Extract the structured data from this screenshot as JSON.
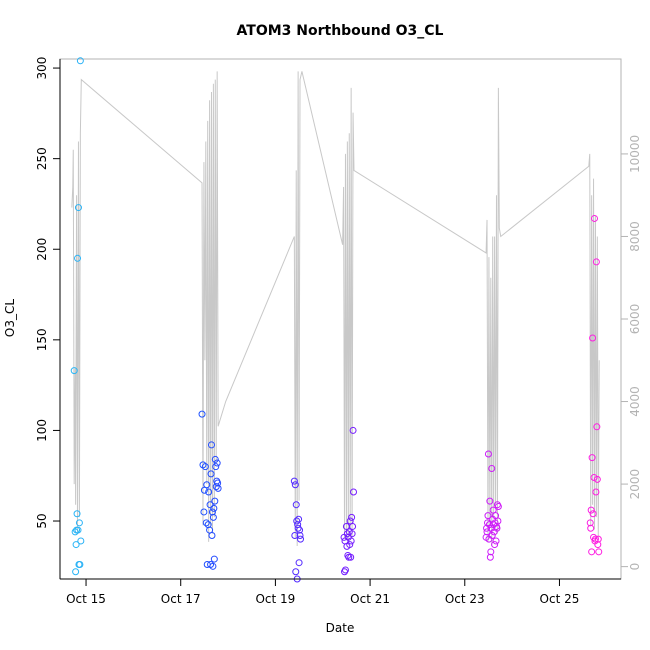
{
  "chart_data": {
    "type": "scatter",
    "title": "ATOM3 Northbound O3_CL",
    "xlabel": "Date",
    "ylabel": "O3_CL",
    "xlim": [
      14.45,
      26.3
    ],
    "ylim": [
      18,
      305
    ],
    "y2lim": [
      -300,
      12300
    ],
    "x_ticks": [
      {
        "value": 15,
        "label": "Oct 15"
      },
      {
        "value": 17,
        "label": "Oct 17"
      },
      {
        "value": 19,
        "label": "Oct 19"
      },
      {
        "value": 21,
        "label": "Oct 21"
      },
      {
        "value": 23,
        "label": "Oct 23"
      },
      {
        "value": 25,
        "label": "Oct 25"
      }
    ],
    "y_ticks": [
      50,
      100,
      150,
      200,
      250,
      300
    ],
    "y2_ticks": [
      0,
      2000,
      4000,
      6000,
      8000,
      10000
    ],
    "grid": false,
    "legend": "none",
    "colors": {
      "altitude_line": "#c8c8c8",
      "right_axis": "#b3b3b3",
      "points_gradient": [
        "#29b6f6",
        "#1e4fff",
        "#6a1bff",
        "#c21bff",
        "#ff1ee0"
      ]
    },
    "series": [
      {
        "role": "O3_CL points",
        "axis": "left",
        "style": "open circles",
        "points": [
          [
            14.75,
            133
          ],
          [
            14.77,
            44
          ],
          [
            14.78,
            22
          ],
          [
            14.79,
            37
          ],
          [
            14.8,
            45
          ],
          [
            14.81,
            54
          ],
          [
            14.82,
            195
          ],
          [
            14.83,
            45
          ],
          [
            14.84,
            223
          ],
          [
            14.85,
            26
          ],
          [
            14.86,
            49
          ],
          [
            14.87,
            26
          ],
          [
            14.88,
            304
          ],
          [
            14.89,
            39
          ],
          [
            17.45,
            109
          ],
          [
            17.47,
            81
          ],
          [
            17.49,
            55
          ],
          [
            17.5,
            67
          ],
          [
            17.52,
            80
          ],
          [
            17.54,
            49
          ],
          [
            17.55,
            70
          ],
          [
            17.56,
            26
          ],
          [
            17.58,
            48
          ],
          [
            17.59,
            66
          ],
          [
            17.61,
            45
          ],
          [
            17.62,
            59
          ],
          [
            17.63,
            26
          ],
          [
            17.64,
            76
          ],
          [
            17.65,
            92
          ],
          [
            17.66,
            42
          ],
          [
            17.67,
            55
          ],
          [
            17.68,
            25
          ],
          [
            17.69,
            52
          ],
          [
            17.7,
            57
          ],
          [
            17.71,
            29
          ],
          [
            17.72,
            61
          ],
          [
            17.73,
            84
          ],
          [
            17.74,
            80
          ],
          [
            17.75,
            69
          ],
          [
            17.76,
            72
          ],
          [
            17.77,
            82
          ],
          [
            17.78,
            71
          ],
          [
            17.79,
            68
          ],
          [
            19.4,
            72
          ],
          [
            19.41,
            42
          ],
          [
            19.42,
            70
          ],
          [
            19.43,
            22
          ],
          [
            19.44,
            59
          ],
          [
            19.45,
            50
          ],
          [
            19.46,
            18
          ],
          [
            19.47,
            48
          ],
          [
            19.48,
            46
          ],
          [
            19.49,
            51
          ],
          [
            19.5,
            27
          ],
          [
            19.51,
            45
          ],
          [
            19.52,
            42
          ],
          [
            19.53,
            40
          ],
          [
            20.45,
            41
          ],
          [
            20.46,
            22
          ],
          [
            20.47,
            39
          ],
          [
            20.48,
            23
          ],
          [
            20.5,
            47
          ],
          [
            20.51,
            36
          ],
          [
            20.52,
            43
          ],
          [
            20.53,
            31
          ],
          [
            20.54,
            41
          ],
          [
            20.55,
            30
          ],
          [
            20.56,
            44
          ],
          [
            20.57,
            37
          ],
          [
            20.58,
            50
          ],
          [
            20.59,
            30
          ],
          [
            20.6,
            39
          ],
          [
            20.61,
            52
          ],
          [
            20.62,
            43
          ],
          [
            20.63,
            47
          ],
          [
            20.64,
            100
          ],
          [
            20.65,
            66
          ],
          [
            23.45,
            41
          ],
          [
            23.46,
            46
          ],
          [
            23.47,
            44
          ],
          [
            23.48,
            49
          ],
          [
            23.49,
            53
          ],
          [
            23.5,
            87
          ],
          [
            23.51,
            40
          ],
          [
            23.52,
            48
          ],
          [
            23.53,
            61
          ],
          [
            23.54,
            30
          ],
          [
            23.55,
            33
          ],
          [
            23.56,
            46
          ],
          [
            23.57,
            79
          ],
          [
            23.58,
            42
          ],
          [
            23.59,
            51
          ],
          [
            23.6,
            56
          ],
          [
            23.61,
            48
          ],
          [
            23.62,
            44
          ],
          [
            23.63,
            37
          ],
          [
            23.64,
            49
          ],
          [
            23.65,
            53
          ],
          [
            23.66,
            39
          ],
          [
            23.67,
            47
          ],
          [
            23.68,
            46
          ],
          [
            23.69,
            59
          ],
          [
            23.7,
            50
          ],
          [
            23.71,
            58
          ],
          [
            25.65,
            49
          ],
          [
            25.66,
            46
          ],
          [
            25.67,
            56
          ],
          [
            25.68,
            33
          ],
          [
            25.69,
            85
          ],
          [
            25.7,
            151
          ],
          [
            25.71,
            54
          ],
          [
            25.72,
            41
          ],
          [
            25.73,
            74
          ],
          [
            25.74,
            217
          ],
          [
            25.75,
            39
          ],
          [
            25.76,
            40
          ],
          [
            25.77,
            66
          ],
          [
            25.78,
            193
          ],
          [
            25.79,
            102
          ],
          [
            25.8,
            73
          ],
          [
            25.81,
            37
          ],
          [
            25.82,
            40
          ],
          [
            25.83,
            33
          ]
        ]
      },
      {
        "role": "altitude trace",
        "axis": "right",
        "style": "line",
        "points": [
          [
            14.7,
            8700
          ],
          [
            14.72,
            9200
          ],
          [
            14.73,
            10100
          ],
          [
            14.75,
            2000
          ],
          [
            14.77,
            4800
          ],
          [
            14.78,
            1500
          ],
          [
            14.8,
            9000
          ],
          [
            14.82,
            800
          ],
          [
            14.84,
            10300
          ],
          [
            14.86,
            1200
          ],
          [
            14.88,
            10500
          ],
          [
            14.9,
            11800
          ],
          [
            17.45,
            9300
          ],
          [
            17.47,
            1000
          ],
          [
            17.49,
            9800
          ],
          [
            17.51,
            5000
          ],
          [
            17.53,
            10300
          ],
          [
            17.55,
            2000
          ],
          [
            17.57,
            10800
          ],
          [
            17.59,
            600
          ],
          [
            17.61,
            11300
          ],
          [
            17.63,
            1000
          ],
          [
            17.65,
            11500
          ],
          [
            17.67,
            800
          ],
          [
            17.69,
            11700
          ],
          [
            17.71,
            1200
          ],
          [
            17.73,
            11800
          ],
          [
            17.75,
            2500
          ],
          [
            17.77,
            12000
          ],
          [
            17.79,
            3400
          ],
          [
            17.95,
            4000
          ],
          [
            19.4,
            8000
          ],
          [
            19.42,
            700
          ],
          [
            19.44,
            9600
          ],
          [
            19.46,
            500
          ],
          [
            19.48,
            12000
          ],
          [
            19.5,
            1600
          ],
          [
            19.52,
            11800
          ],
          [
            19.56,
            12000
          ],
          [
            20.42,
            7800
          ],
          [
            20.44,
            9200
          ],
          [
            20.46,
            700
          ],
          [
            20.48,
            10000
          ],
          [
            20.5,
            800
          ],
          [
            20.52,
            10300
          ],
          [
            20.54,
            600
          ],
          [
            20.56,
            10500
          ],
          [
            20.58,
            900
          ],
          [
            20.6,
            11600
          ],
          [
            20.62,
            700
          ],
          [
            20.64,
            11000
          ],
          [
            20.66,
            9600
          ],
          [
            23.45,
            7600
          ],
          [
            23.47,
            8400
          ],
          [
            23.49,
            600
          ],
          [
            23.51,
            7500
          ],
          [
            23.53,
            1000
          ],
          [
            23.55,
            7000
          ],
          [
            23.57,
            500
          ],
          [
            23.59,
            8000
          ],
          [
            23.61,
            1200
          ],
          [
            23.63,
            8000
          ],
          [
            23.65,
            1500
          ],
          [
            23.67,
            9000
          ],
          [
            23.69,
            800
          ],
          [
            23.71,
            11600
          ],
          [
            23.73,
            8200
          ],
          [
            23.76,
            8000
          ],
          [
            25.62,
            9700
          ],
          [
            25.64,
            10000
          ],
          [
            25.66,
            1000
          ],
          [
            25.68,
            9000
          ],
          [
            25.7,
            1500
          ],
          [
            25.72,
            9400
          ],
          [
            25.74,
            900
          ],
          [
            25.76,
            8500
          ],
          [
            25.78,
            1200
          ],
          [
            25.8,
            8000
          ],
          [
            25.82,
            700
          ],
          [
            25.84,
            5000
          ]
        ]
      }
    ]
  }
}
